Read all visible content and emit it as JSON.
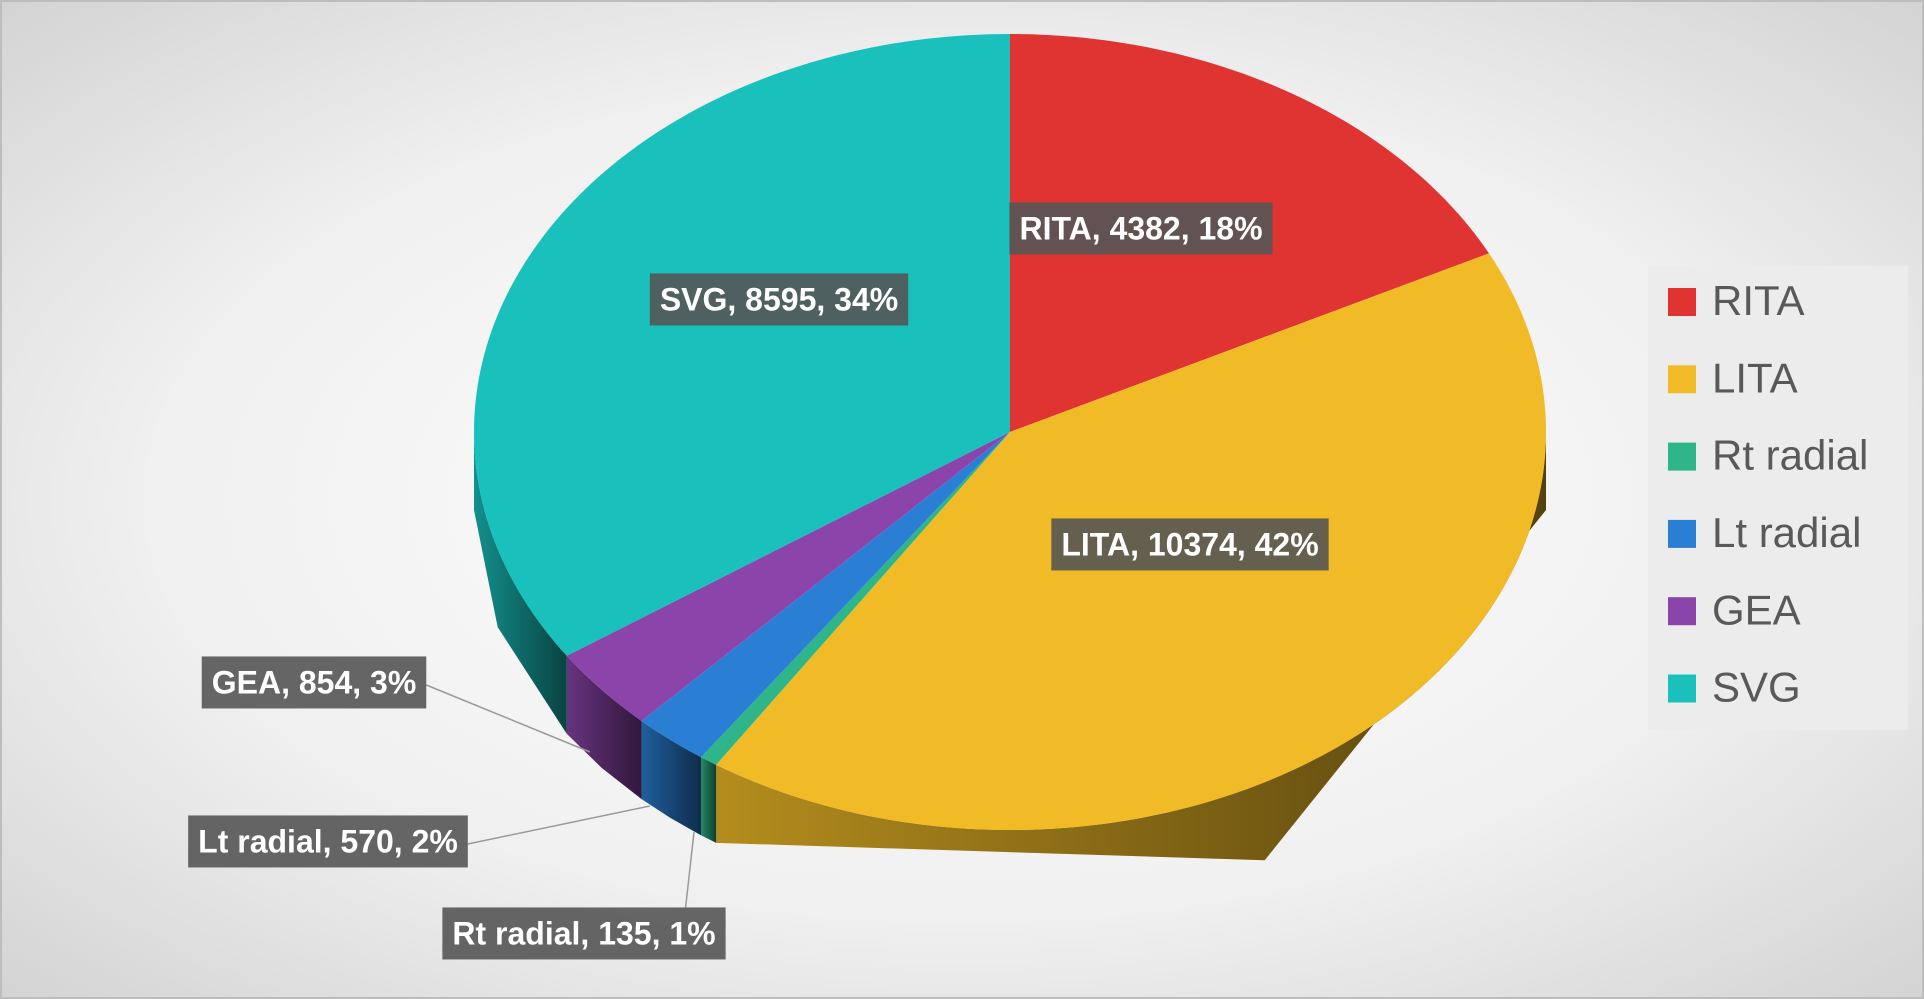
{
  "chart_data": {
    "type": "pie3d",
    "categories": [
      "RITA",
      "LITA",
      "Rt radial",
      "Lt radial",
      "GEA",
      "SVG"
    ],
    "values": [
      4382,
      10374,
      135,
      570,
      854,
      8595
    ],
    "value_labels": [
      "RITA, 4382, 18%",
      "LITA, 10374, 42%",
      "Rt radial, 135, 1%",
      "Lt radial, 570, 2%",
      "GEA, 854, 3%",
      "SVG, 8595, 34%"
    ],
    "colors": [
      "#e03433",
      "#f0bb27",
      "#2fb58a",
      "#2a7fd4",
      "#8a44aa",
      "#19c0bc"
    ],
    "legend": "right"
  }
}
